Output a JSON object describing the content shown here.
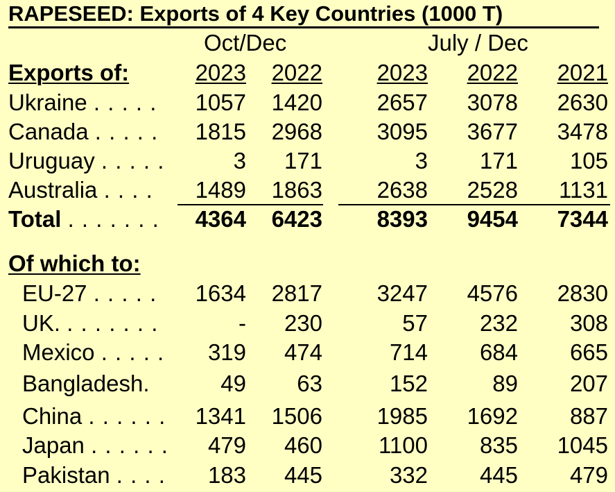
{
  "title": "RAPESEED:  Exports of 4 Key Countries (1000 T)",
  "period_headers": [
    "Oct/Dec",
    "July / Dec"
  ],
  "row_header": "Exports of:",
  "year_headers": [
    "2023",
    "2022",
    "2023",
    "2022",
    "2021"
  ],
  "exporters": [
    {
      "label": "Ukraine",
      "leader": ". . . . .",
      "values": [
        "1057",
        "1420",
        "2657",
        "3078",
        "2630"
      ]
    },
    {
      "label": "Canada",
      "leader": ". . . . .",
      "values": [
        "1815",
        "2968",
        "3095",
        "3677",
        "3478"
      ]
    },
    {
      "label": "Uruguay",
      "leader": ". . . . .",
      "values": [
        "3",
        "171",
        "3",
        "171",
        "105"
      ]
    },
    {
      "label": "Australia",
      "leader": ". . . .",
      "values": [
        "1489",
        "1863",
        "2638",
        "2528",
        "1131"
      ]
    }
  ],
  "total": {
    "label": "Total",
    "leader": ". . . . . . .",
    "values": [
      "4364",
      "6423",
      "8393",
      "9454",
      "7344"
    ]
  },
  "destinations_header": "Of which to:",
  "destinations": [
    {
      "label": "EU-27",
      "leader": ". . . . .",
      "values": [
        "1634",
        "2817",
        "3247",
        "4576",
        "2830"
      ]
    },
    {
      "label": "UK.",
      "leader": ". . . . . . .",
      "values": [
        "-",
        "230",
        "57",
        "232",
        "308"
      ]
    },
    {
      "label": "Mexico",
      "leader": ". . . . .",
      "values": [
        "319",
        "474",
        "714",
        "684",
        "665"
      ]
    },
    {
      "label": "Bangladesh.",
      "leader": "",
      "values": [
        "49",
        "63",
        "152",
        "89",
        "207"
      ]
    },
    {
      "label": "China",
      "leader": ". . . . . .",
      "values": [
        "1341",
        "1506",
        "1985",
        "1692",
        "887"
      ]
    },
    {
      "label": "Japan",
      "leader": ". . . . . .",
      "values": [
        "479",
        "460",
        "1100",
        "835",
        "1045"
      ]
    },
    {
      "label": "Pakistan",
      "leader": ". . . .",
      "values": [
        "183",
        "445",
        "332",
        "445",
        "479"
      ]
    }
  ],
  "colors": {
    "background": "#ffffc4",
    "text": "#000000"
  }
}
